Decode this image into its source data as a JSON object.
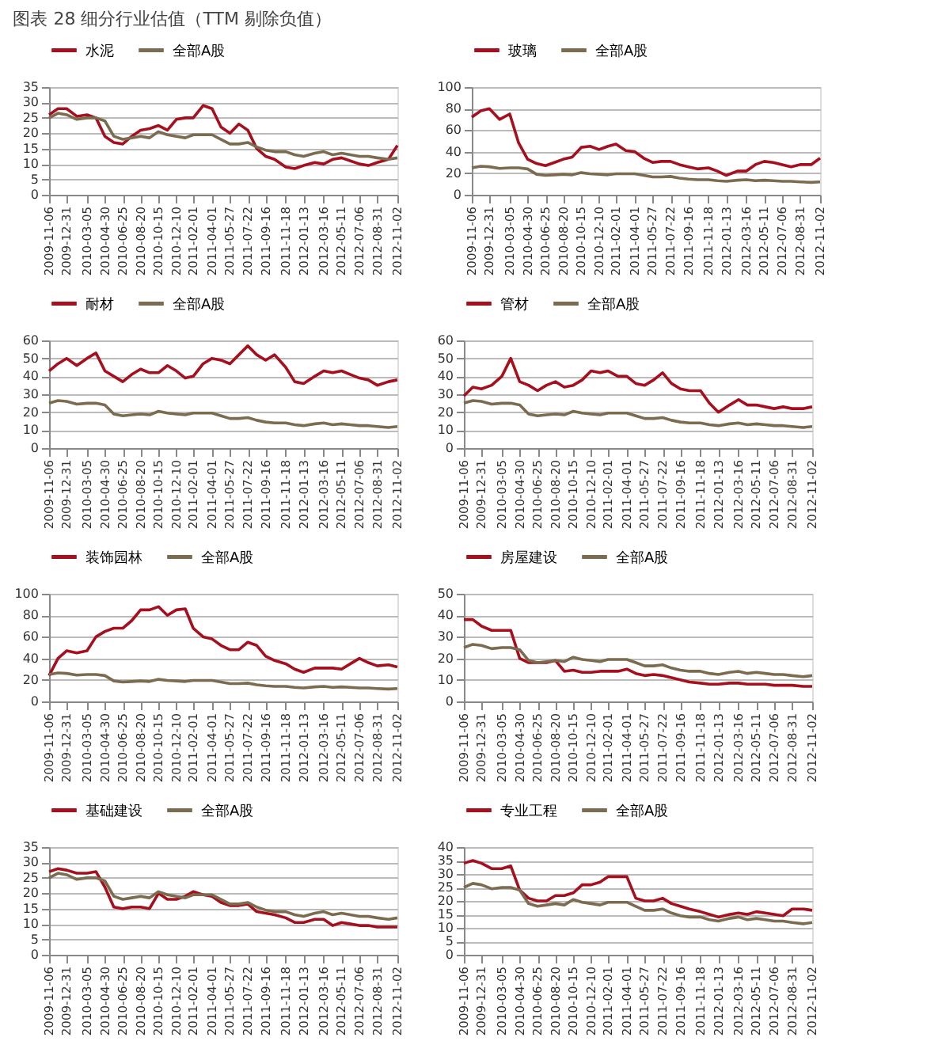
{
  "chart_data": [
    {
      "type": "line",
      "annotations": [
        "图表 28  细分行业估值（TTM 剔除负值）"
      ],
      "x": [
        "2009-11-06",
        "2009-12-04",
        "2009-12-31",
        "2010-02-01",
        "2010-03-05",
        "2010-04-02",
        "2010-04-30",
        "2010-05-28",
        "2010-06-25",
        "2010-07-23",
        "2010-08-20",
        "2010-09-17",
        "2010-10-15",
        "2010-11-12",
        "2010-12-10",
        "2011-01-07",
        "2011-02-01",
        "2011-03-04",
        "2011-04-01",
        "2011-04-29",
        "2011-05-27",
        "2011-06-24",
        "2011-07-22",
        "2011-08-19",
        "2011-09-16",
        "2011-10-14",
        "2011-11-18",
        "2011-12-16",
        "2012-01-13",
        "2012-02-17",
        "2012-03-16",
        "2012-04-13",
        "2012-05-11",
        "2012-06-08",
        "2012-07-06",
        "2012-08-03",
        "2012-08-31",
        "2012-10-05",
        "2012-11-02"
      ],
      "xlim": [
        "2009-11-06",
        "2012-11-02"
      ],
      "xticks": [
        "2009-11-06",
        "2009-12-31",
        "2010-03-05",
        "2010-04-30",
        "2010-06-25",
        "2010-08-20",
        "2010-10-15",
        "2010-12-10",
        "2011-02-01",
        "2011-04-01",
        "2011-05-27",
        "2011-07-22",
        "2011-09-16",
        "2011-11-18",
        "2012-01-13",
        "2012-03-16",
        "2012-05-11",
        "2012-07-06",
        "2012-08-31",
        "2012-11-02"
      ],
      "ylim": [
        0,
        35
      ],
      "yticks": [
        0,
        5,
        10,
        15,
        20,
        25,
        30,
        35
      ],
      "grid": "y",
      "legend": "top",
      "series": [
        {
          "name": "水泥",
          "color": "#a6101e",
          "values": [
            26,
            28,
            28,
            25.5,
            26,
            25,
            19,
            17,
            16.5,
            19,
            21,
            21.5,
            22.5,
            21,
            24.5,
            25,
            25,
            29,
            28,
            22,
            20,
            23,
            21,
            15,
            12.5,
            11.5,
            9,
            8.5,
            9.5,
            10.5,
            10,
            11.5,
            12,
            11,
            10,
            9.5,
            10.5,
            11.5,
            16
          ]
        },
        {
          "name": "全部A股",
          "color": "#7b6b4f",
          "values": [
            25,
            26.5,
            26,
            24.5,
            25,
            25,
            24,
            19,
            18,
            18.5,
            19,
            18.5,
            20.5,
            19.5,
            19,
            18.5,
            19.5,
            19.5,
            19.5,
            18,
            16.5,
            16.5,
            17,
            15.5,
            14.5,
            14,
            14,
            13,
            12.5,
            13.5,
            14,
            13,
            13.5,
            13,
            12.5,
            12.5,
            12,
            11.5,
            12
          ]
        }
      ]
    },
    {
      "type": "line",
      "x": [
        "2009-11-06",
        "2009-12-04",
        "2009-12-31",
        "2010-02-01",
        "2010-03-05",
        "2010-04-02",
        "2010-04-30",
        "2010-05-28",
        "2010-06-25",
        "2010-07-23",
        "2010-08-20",
        "2010-09-17",
        "2010-10-15",
        "2010-11-12",
        "2010-12-10",
        "2011-01-07",
        "2011-02-01",
        "2011-03-04",
        "2011-04-01",
        "2011-04-29",
        "2011-05-27",
        "2011-06-24",
        "2011-07-22",
        "2011-08-19",
        "2011-09-16",
        "2011-10-14",
        "2011-11-18",
        "2011-12-16",
        "2012-01-13",
        "2012-02-17",
        "2012-03-16",
        "2012-04-13",
        "2012-05-11",
        "2012-06-08",
        "2012-07-06",
        "2012-08-03",
        "2012-08-31",
        "2012-10-05",
        "2012-11-02"
      ],
      "xlim": [
        "2009-11-06",
        "2012-11-02"
      ],
      "xticks": [
        "2009-11-06",
        "2009-12-31",
        "2010-03-05",
        "2010-04-30",
        "2010-06-25",
        "2010-08-20",
        "2010-10-15",
        "2010-12-10",
        "2011-02-01",
        "2011-04-01",
        "2011-05-27",
        "2011-07-22",
        "2011-09-16",
        "2011-11-18",
        "2012-01-13",
        "2012-03-16",
        "2012-05-11",
        "2012-07-06",
        "2012-08-31",
        "2012-11-02"
      ],
      "ylim": [
        0,
        100
      ],
      "yticks": [
        0,
        20,
        40,
        60,
        80,
        100
      ],
      "grid": "y",
      "legend": "top",
      "series": [
        {
          "name": "玻璃",
          "color": "#a6101e",
          "values": [
            72,
            78,
            80,
            70,
            75,
            48,
            33,
            29,
            27,
            30,
            33,
            35,
            44,
            45,
            42,
            45,
            47,
            41,
            40,
            34,
            30,
            31,
            31,
            28,
            26,
            24,
            25,
            22,
            18,
            22,
            22,
            28,
            31,
            30,
            28,
            26,
            28,
            28,
            34
          ]
        },
        {
          "name": "全部A股",
          "color": "#7b6b4f",
          "values": [
            25,
            26.5,
            26,
            24.5,
            25,
            25,
            24,
            19,
            18,
            18.5,
            19,
            18.5,
            20.5,
            19.5,
            19,
            18.5,
            19.5,
            19.5,
            19.5,
            18,
            16.5,
            16.5,
            17,
            15.5,
            14.5,
            14,
            14,
            13,
            12.5,
            13.5,
            14,
            13,
            13.5,
            13,
            12.5,
            12.5,
            12,
            11.5,
            12
          ]
        }
      ]
    },
    {
      "type": "line",
      "x": [
        "2009-11-06",
        "2009-12-04",
        "2009-12-31",
        "2010-02-01",
        "2010-03-05",
        "2010-04-02",
        "2010-04-30",
        "2010-05-28",
        "2010-06-25",
        "2010-07-23",
        "2010-08-20",
        "2010-09-17",
        "2010-10-15",
        "2010-11-12",
        "2010-12-10",
        "2011-01-07",
        "2011-02-01",
        "2011-03-04",
        "2011-04-01",
        "2011-04-29",
        "2011-05-27",
        "2011-06-24",
        "2011-07-22",
        "2011-08-19",
        "2011-09-16",
        "2011-10-14",
        "2011-11-18",
        "2011-12-16",
        "2012-01-13",
        "2012-02-17",
        "2012-03-16",
        "2012-04-13",
        "2012-05-11",
        "2012-06-08",
        "2012-07-06",
        "2012-08-03",
        "2012-08-31",
        "2012-10-05",
        "2012-11-02"
      ],
      "xlim": [
        "2009-11-06",
        "2012-11-02"
      ],
      "xticks": [
        "2009-11-06",
        "2009-12-31",
        "2010-03-05",
        "2010-04-30",
        "2010-06-25",
        "2010-08-20",
        "2010-10-15",
        "2010-12-10",
        "2011-02-01",
        "2011-04-01",
        "2011-05-27",
        "2011-07-22",
        "2011-09-16",
        "2011-11-18",
        "2012-01-13",
        "2012-03-16",
        "2012-05-11",
        "2012-07-06",
        "2012-08-31",
        "2012-11-02"
      ],
      "ylim": [
        0,
        60
      ],
      "yticks": [
        0,
        10,
        20,
        30,
        40,
        50,
        60
      ],
      "grid": "y",
      "legend": "top",
      "series": [
        {
          "name": "耐材",
          "color": "#a6101e",
          "values": [
            43,
            47,
            50,
            46,
            50,
            53,
            43,
            40,
            37,
            41,
            44,
            42,
            42,
            46,
            43,
            39,
            40,
            47,
            50,
            49,
            47,
            52,
            57,
            52,
            49,
            52,
            45,
            37,
            36,
            40,
            43,
            42,
            43,
            41,
            39,
            38,
            35,
            37,
            38
          ]
        },
        {
          "name": "全部A股",
          "color": "#7b6b4f",
          "values": [
            25,
            26.5,
            26,
            24.5,
            25,
            25,
            24,
            19,
            18,
            18.5,
            19,
            18.5,
            20.5,
            19.5,
            19,
            18.5,
            19.5,
            19.5,
            19.5,
            18,
            16.5,
            16.5,
            17,
            15.5,
            14.5,
            14,
            14,
            13,
            12.5,
            13.5,
            14,
            13,
            13.5,
            13,
            12.5,
            12.5,
            12,
            11.5,
            12
          ]
        }
      ]
    },
    {
      "type": "line",
      "x": [
        "2009-11-06",
        "2009-12-04",
        "2009-12-31",
        "2010-02-01",
        "2010-03-05",
        "2010-04-02",
        "2010-04-30",
        "2010-05-28",
        "2010-06-25",
        "2010-07-23",
        "2010-08-20",
        "2010-09-17",
        "2010-10-15",
        "2010-11-12",
        "2010-12-10",
        "2011-01-07",
        "2011-02-01",
        "2011-03-04",
        "2011-04-01",
        "2011-04-29",
        "2011-05-27",
        "2011-06-24",
        "2011-07-22",
        "2011-08-19",
        "2011-09-16",
        "2011-10-14",
        "2011-11-18",
        "2011-12-16",
        "2012-01-13",
        "2012-02-17",
        "2012-03-16",
        "2012-04-13",
        "2012-05-11",
        "2012-06-08",
        "2012-07-06",
        "2012-08-03",
        "2012-08-31",
        "2012-10-05",
        "2012-11-02"
      ],
      "xlim": [
        "2009-11-06",
        "2012-11-02"
      ],
      "xticks": [
        "2009-11-06",
        "2009-12-31",
        "2010-03-05",
        "2010-04-30",
        "2010-06-25",
        "2010-08-20",
        "2010-10-15",
        "2010-12-10",
        "2011-02-01",
        "2011-04-01",
        "2011-05-27",
        "2011-07-22",
        "2011-09-16",
        "2011-11-18",
        "2012-01-13",
        "2012-03-16",
        "2012-05-11",
        "2012-07-06",
        "2012-08-31",
        "2012-11-02"
      ],
      "ylim": [
        0,
        60
      ],
      "yticks": [
        0,
        10,
        20,
        30,
        40,
        50,
        60
      ],
      "grid": "y",
      "legend": "top",
      "series": [
        {
          "name": "管材",
          "color": "#a6101e",
          "values": [
            29,
            34,
            33,
            35,
            40,
            50,
            37,
            35,
            32,
            35,
            37,
            34,
            35,
            38,
            43,
            42,
            43,
            40,
            40,
            36,
            35,
            38,
            42,
            36,
            33,
            32,
            32,
            25,
            20,
            24,
            27,
            24,
            24,
            23,
            22,
            23,
            22,
            22,
            23
          ]
        },
        {
          "name": "全部A股",
          "color": "#7b6b4f",
          "values": [
            25,
            26.5,
            26,
            24.5,
            25,
            25,
            24,
            19,
            18,
            18.5,
            19,
            18.5,
            20.5,
            19.5,
            19,
            18.5,
            19.5,
            19.5,
            19.5,
            18,
            16.5,
            16.5,
            17,
            15.5,
            14.5,
            14,
            14,
            13,
            12.5,
            13.5,
            14,
            13,
            13.5,
            13,
            12.5,
            12.5,
            12,
            11.5,
            12
          ]
        }
      ]
    },
    {
      "type": "line",
      "x": [
        "2009-11-06",
        "2009-12-04",
        "2009-12-31",
        "2010-02-01",
        "2010-03-05",
        "2010-04-02",
        "2010-04-30",
        "2010-05-28",
        "2010-06-25",
        "2010-07-23",
        "2010-08-20",
        "2010-09-17",
        "2010-10-15",
        "2010-11-12",
        "2010-12-10",
        "2011-01-07",
        "2011-02-01",
        "2011-03-04",
        "2011-04-01",
        "2011-04-29",
        "2011-05-27",
        "2011-06-24",
        "2011-07-22",
        "2011-08-19",
        "2011-09-16",
        "2011-10-14",
        "2011-11-18",
        "2011-12-16",
        "2012-01-13",
        "2012-02-17",
        "2012-03-16",
        "2012-04-13",
        "2012-05-11",
        "2012-06-08",
        "2012-07-06",
        "2012-08-03",
        "2012-08-31",
        "2012-10-05",
        "2012-11-02"
      ],
      "xlim": [
        "2009-11-06",
        "2012-11-02"
      ],
      "xticks": [
        "2009-11-06",
        "2009-12-31",
        "2010-03-05",
        "2010-04-30",
        "2010-06-25",
        "2010-08-20",
        "2010-10-15",
        "2010-12-10",
        "2011-02-01",
        "2011-04-01",
        "2011-05-27",
        "2011-07-22",
        "2011-09-16",
        "2011-11-18",
        "2012-01-13",
        "2012-03-16",
        "2012-05-11",
        "2012-07-06",
        "2012-08-31",
        "2012-11-02"
      ],
      "ylim": [
        0,
        100
      ],
      "yticks": [
        0,
        20,
        40,
        60,
        80,
        100
      ],
      "grid": "y",
      "legend": "top",
      "series": [
        {
          "name": "装饰园林",
          "color": "#a6101e",
          "values": [
            24,
            40,
            47,
            45,
            47,
            60,
            65,
            68,
            68,
            75,
            85,
            85,
            88,
            80,
            85,
            86,
            68,
            60,
            58,
            52,
            48,
            48,
            55,
            52,
            42,
            38,
            35,
            30,
            27,
            31,
            31,
            31,
            30,
            35,
            40,
            36,
            33,
            34,
            32
          ]
        },
        {
          "name": "全部A股",
          "color": "#7b6b4f",
          "values": [
            25,
            26.5,
            26,
            24.5,
            25,
            25,
            24,
            19,
            18,
            18.5,
            19,
            18.5,
            20.5,
            19.5,
            19,
            18.5,
            19.5,
            19.5,
            19.5,
            18,
            16.5,
            16.5,
            17,
            15.5,
            14.5,
            14,
            14,
            13,
            12.5,
            13.5,
            14,
            13,
            13.5,
            13,
            12.5,
            12.5,
            12,
            11.5,
            12
          ]
        }
      ]
    },
    {
      "type": "line",
      "x": [
        "2009-11-06",
        "2009-12-04",
        "2009-12-31",
        "2010-02-01",
        "2010-03-05",
        "2010-04-02",
        "2010-04-30",
        "2010-05-28",
        "2010-06-25",
        "2010-07-23",
        "2010-08-20",
        "2010-09-17",
        "2010-10-15",
        "2010-11-12",
        "2010-12-10",
        "2011-01-07",
        "2011-02-01",
        "2011-03-04",
        "2011-04-01",
        "2011-04-29",
        "2011-05-27",
        "2011-06-24",
        "2011-07-22",
        "2011-08-19",
        "2011-09-16",
        "2011-10-14",
        "2011-11-18",
        "2011-12-16",
        "2012-01-13",
        "2012-02-17",
        "2012-03-16",
        "2012-04-13",
        "2012-05-11",
        "2012-06-08",
        "2012-07-06",
        "2012-08-03",
        "2012-08-31",
        "2012-10-05",
        "2012-11-02"
      ],
      "xlim": [
        "2009-11-06",
        "2012-11-02"
      ],
      "xticks": [
        "2009-11-06",
        "2009-12-31",
        "2010-03-05",
        "2010-04-30",
        "2010-06-25",
        "2010-08-20",
        "2010-10-15",
        "2010-12-10",
        "2011-02-01",
        "2011-04-01",
        "2011-05-27",
        "2011-07-22",
        "2011-09-16",
        "2011-11-18",
        "2012-01-13",
        "2012-03-16",
        "2012-05-11",
        "2012-07-06",
        "2012-08-31",
        "2012-11-02"
      ],
      "ylim": [
        0,
        50
      ],
      "yticks": [
        0,
        10,
        20,
        30,
        40,
        50
      ],
      "grid": "y",
      "legend": "top",
      "series": [
        {
          "name": "房屋建设",
          "color": "#a6101e",
          "values": [
            38,
            38,
            35,
            33,
            33,
            33,
            20,
            18,
            18,
            18,
            19,
            14,
            14.5,
            13.5,
            13.5,
            14,
            14,
            14,
            15,
            13,
            12,
            12.5,
            12,
            11,
            10,
            9,
            8.5,
            8,
            8,
            8.5,
            8.5,
            8,
            8,
            8,
            7.5,
            7.5,
            7.5,
            7,
            7
          ]
        },
        {
          "name": "全部A股",
          "color": "#7b6b4f",
          "values": [
            25,
            26.5,
            26,
            24.5,
            25,
            25,
            24,
            19,
            18,
            18.5,
            19,
            18.5,
            20.5,
            19.5,
            19,
            18.5,
            19.5,
            19.5,
            19.5,
            18,
            16.5,
            16.5,
            17,
            15.5,
            14.5,
            14,
            14,
            13,
            12.5,
            13.5,
            14,
            13,
            13.5,
            13,
            12.5,
            12.5,
            12,
            11.5,
            12
          ]
        }
      ]
    },
    {
      "type": "line",
      "x": [
        "2009-11-06",
        "2009-12-04",
        "2009-12-31",
        "2010-02-01",
        "2010-03-05",
        "2010-04-02",
        "2010-04-30",
        "2010-05-28",
        "2010-06-25",
        "2010-07-23",
        "2010-08-20",
        "2010-09-17",
        "2010-10-15",
        "2010-11-12",
        "2010-12-10",
        "2011-01-07",
        "2011-02-01",
        "2011-03-04",
        "2011-04-01",
        "2011-04-29",
        "2011-05-27",
        "2011-06-24",
        "2011-07-22",
        "2011-08-19",
        "2011-09-16",
        "2011-10-14",
        "2011-11-18",
        "2011-12-16",
        "2012-01-13",
        "2012-02-17",
        "2012-03-16",
        "2012-04-13",
        "2012-05-11",
        "2012-06-08",
        "2012-07-06",
        "2012-08-03",
        "2012-08-31",
        "2012-10-05",
        "2012-11-02"
      ],
      "xlim": [
        "2009-11-06",
        "2012-11-02"
      ],
      "xticks": [
        "2009-11-06",
        "2009-12-31",
        "2010-03-05",
        "2010-04-30",
        "2010-06-25",
        "2010-08-20",
        "2010-10-15",
        "2010-12-10",
        "2011-02-01",
        "2011-04-01",
        "2011-05-27",
        "2011-07-22",
        "2011-09-16",
        "2011-11-18",
        "2012-01-13",
        "2012-03-16",
        "2012-05-11",
        "2012-07-06",
        "2012-08-31",
        "2012-11-02"
      ],
      "ylim": [
        0,
        35
      ],
      "yticks": [
        0,
        5,
        10,
        15,
        20,
        25,
        30,
        35
      ],
      "grid": "y",
      "legend": "top",
      "series": [
        {
          "name": "基础建设",
          "color": "#a6101e",
          "values": [
            27,
            28,
            27.5,
            26.5,
            26.5,
            27,
            22,
            15.5,
            15,
            15.5,
            15.5,
            15,
            20,
            18,
            18,
            19,
            20.5,
            19.5,
            19,
            17,
            16,
            16,
            16.5,
            14,
            13.5,
            13,
            12,
            10.5,
            10.5,
            11.5,
            11.5,
            9.5,
            10.5,
            10,
            9.5,
            9.5,
            9,
            9,
            9
          ]
        },
        {
          "name": "全部A股",
          "color": "#7b6b4f",
          "values": [
            25,
            26.5,
            26,
            24.5,
            25,
            25,
            24,
            19,
            18,
            18.5,
            19,
            18.5,
            20.5,
            19.5,
            19,
            18.5,
            19.5,
            19.5,
            19.5,
            18,
            16.5,
            16.5,
            17,
            15.5,
            14.5,
            14,
            14,
            13,
            12.5,
            13.5,
            14,
            13,
            13.5,
            13,
            12.5,
            12.5,
            12,
            11.5,
            12
          ]
        }
      ]
    },
    {
      "type": "line",
      "x": [
        "2009-11-06",
        "2009-12-04",
        "2009-12-31",
        "2010-02-01",
        "2010-03-05",
        "2010-04-02",
        "2010-04-30",
        "2010-05-28",
        "2010-06-25",
        "2010-07-23",
        "2010-08-20",
        "2010-09-17",
        "2010-10-15",
        "2010-11-12",
        "2010-12-10",
        "2011-01-07",
        "2011-02-01",
        "2011-03-04",
        "2011-04-01",
        "2011-04-29",
        "2011-05-27",
        "2011-06-24",
        "2011-07-22",
        "2011-08-19",
        "2011-09-16",
        "2011-10-14",
        "2011-11-18",
        "2011-12-16",
        "2012-01-13",
        "2012-02-17",
        "2012-03-16",
        "2012-04-13",
        "2012-05-11",
        "2012-06-08",
        "2012-07-06",
        "2012-08-03",
        "2012-08-31",
        "2012-10-05",
        "2012-11-02"
      ],
      "xlim": [
        "2009-11-06",
        "2012-11-02"
      ],
      "xticks": [
        "2009-11-06",
        "2009-12-31",
        "2010-03-05",
        "2010-04-30",
        "2010-06-25",
        "2010-08-20",
        "2010-10-15",
        "2010-12-10",
        "2011-02-01",
        "2011-04-01",
        "2011-05-27",
        "2011-07-22",
        "2011-09-16",
        "2011-11-18",
        "2012-01-13",
        "2012-03-16",
        "2012-05-11",
        "2012-07-06",
        "2012-08-31",
        "2012-11-02"
      ],
      "ylim": [
        0,
        40
      ],
      "yticks": [
        0,
        5,
        10,
        15,
        20,
        25,
        30,
        35,
        40
      ],
      "grid": "y",
      "legend": "top",
      "series": [
        {
          "name": "专业工程",
          "color": "#a6101e",
          "values": [
            34,
            35,
            34,
            32,
            32,
            33,
            24,
            21,
            20,
            20,
            22,
            22,
            23,
            26,
            26,
            27,
            29,
            29,
            29,
            21,
            20,
            20,
            21,
            19,
            18,
            17,
            16,
            15,
            14,
            15,
            15.5,
            15,
            16,
            15.5,
            15,
            14.5,
            17,
            17,
            16.5
          ]
        },
        {
          "name": "全部A股",
          "color": "#7b6b4f",
          "values": [
            25,
            26.5,
            26,
            24.5,
            25,
            25,
            24,
            19,
            18,
            18.5,
            19,
            18.5,
            20.5,
            19.5,
            19,
            18.5,
            19.5,
            19.5,
            19.5,
            18,
            16.5,
            16.5,
            17,
            15.5,
            14.5,
            14,
            14,
            13,
            12.5,
            13.5,
            14,
            13,
            13.5,
            13,
            12.5,
            12.5,
            12,
            11.5,
            12
          ]
        }
      ]
    }
  ]
}
